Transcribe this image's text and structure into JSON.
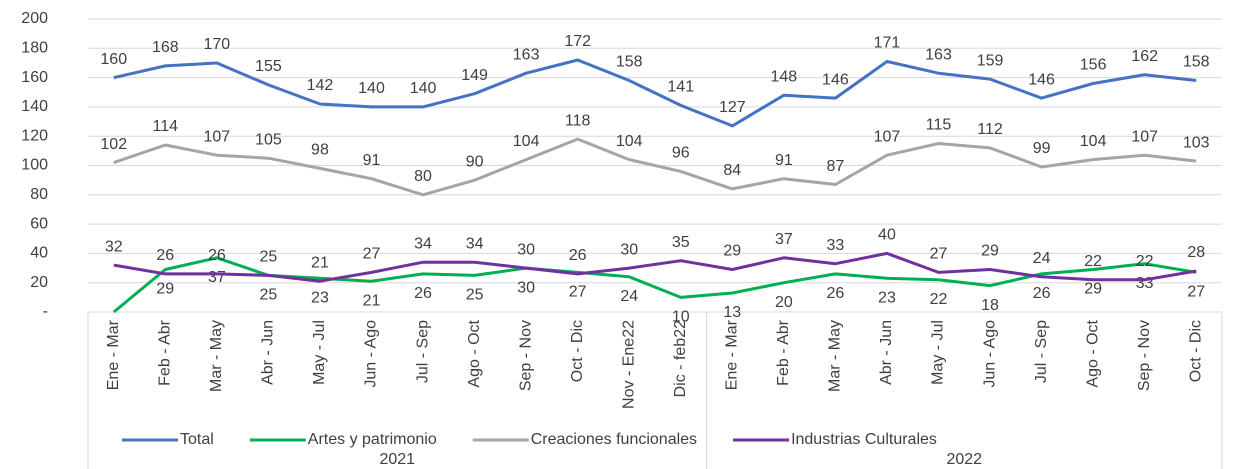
{
  "chart_data": {
    "type": "line",
    "groups": [
      {
        "label": "2021",
        "categories": [
          "Ene - Mar",
          "Feb - Abr",
          "Mar - May",
          "Abr - Jun",
          "May - Jul",
          "Jun - Ago",
          "Jul - Sep",
          "Ago - Oct",
          "Sep - Nov",
          "Oct - Dic",
          "Nov - Ene22",
          "Dic - feb22"
        ]
      },
      {
        "label": "2022",
        "categories": [
          "Ene - Mar",
          "Feb - Abr",
          "Mar - May",
          "Abr - Jun",
          "May - Jul",
          "Jun - Ago",
          "Jul - Sep",
          "Ago - Oct",
          "Sep - Nov",
          "Oct - Dic"
        ]
      }
    ],
    "series": [
      {
        "name": "Total",
        "color": "#4472c4",
        "label_position": "above",
        "values": [
          160,
          168,
          170,
          155,
          142,
          140,
          140,
          149,
          163,
          172,
          158,
          141,
          127,
          148,
          146,
          171,
          163,
          159,
          146,
          156,
          162,
          158
        ]
      },
      {
        "name": "Artes y patrimonio",
        "color": "#00b050",
        "label_position": "below",
        "values": [
          0,
          29,
          37,
          25,
          23,
          21,
          26,
          25,
          30,
          27,
          24,
          10,
          13,
          20,
          26,
          23,
          22,
          18,
          26,
          29,
          33,
          27
        ],
        "value_labels": [
          null,
          "29",
          "37",
          "25",
          "23",
          "21",
          "26",
          "25",
          "30",
          "27",
          "24",
          "10",
          "13",
          "20",
          "26",
          "23",
          "22",
          "18",
          "26",
          "29",
          "33",
          "27"
        ]
      },
      {
        "name": "Creaciones funcionales",
        "color": "#a5a5a5",
        "label_position": "above",
        "values": [
          102,
          114,
          107,
          105,
          98,
          91,
          80,
          90,
          104,
          118,
          104,
          96,
          84,
          91,
          87,
          107,
          115,
          112,
          99,
          104,
          107,
          103
        ]
      },
      {
        "name": "Industrias Culturales",
        "color": "#7030a0",
        "label_position": "above",
        "values": [
          32,
          26,
          26,
          25,
          21,
          27,
          34,
          34,
          30,
          26,
          30,
          35,
          29,
          37,
          33,
          40,
          27,
          29,
          24,
          22,
          22,
          28
        ]
      }
    ],
    "ylim": [
      0,
      200
    ],
    "yticks": [
      {
        "value": 0,
        "label": "-"
      },
      20,
      40,
      60,
      80,
      100,
      120,
      140,
      160,
      180,
      200
    ],
    "grid": true
  }
}
